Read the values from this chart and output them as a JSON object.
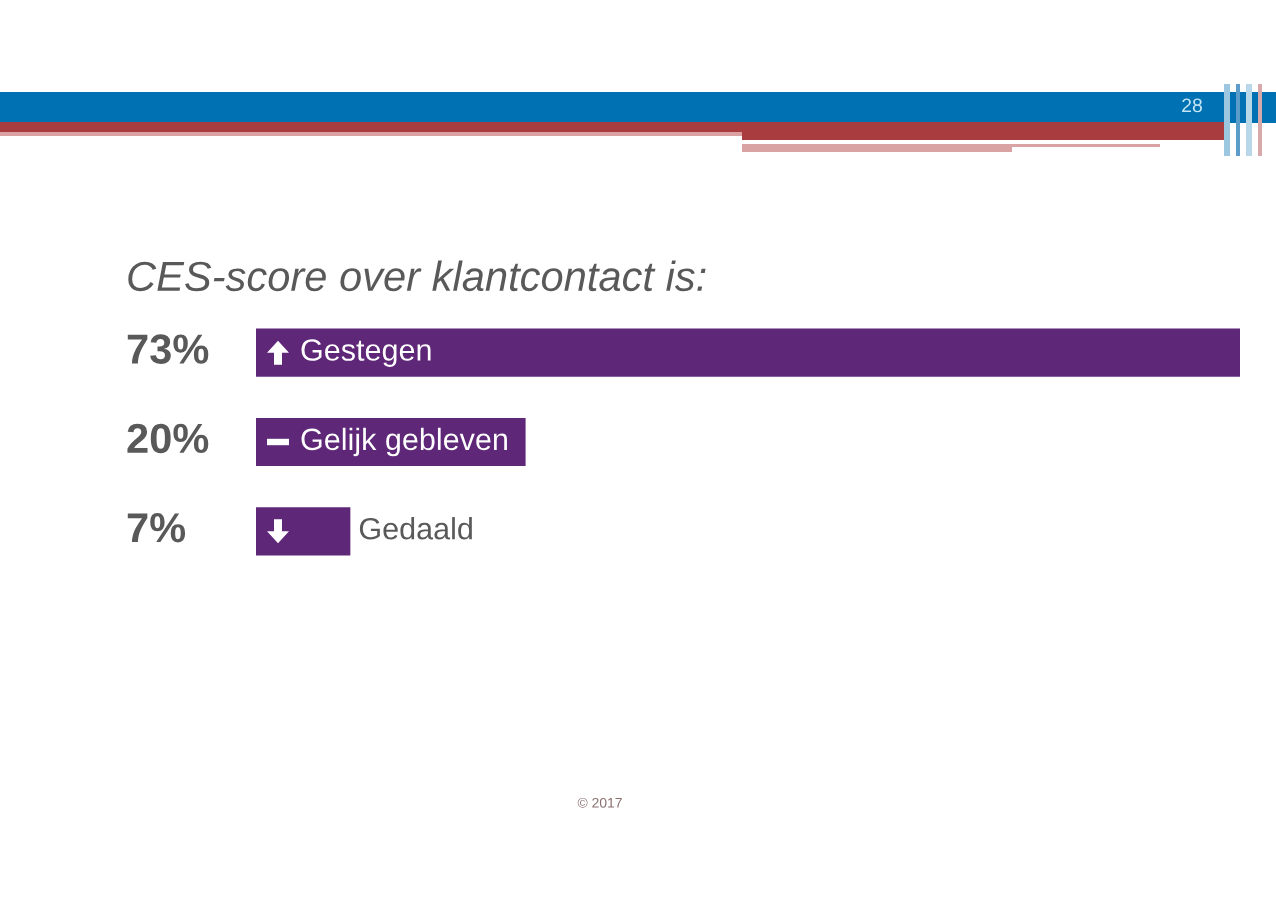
{
  "chart_data": {
    "type": "bar",
    "orientation": "horizontal",
    "title": "CES-score over klantcontact is:",
    "categories": [
      "Gestegen",
      "Gelijk gebleven",
      "Gedaald"
    ],
    "values": [
      73,
      20,
      7
    ],
    "value_labels": [
      "73%",
      "20%",
      "7%"
    ],
    "color": "#5f2778",
    "annotations": [
      "28",
      "© 2017"
    ]
  }
}
